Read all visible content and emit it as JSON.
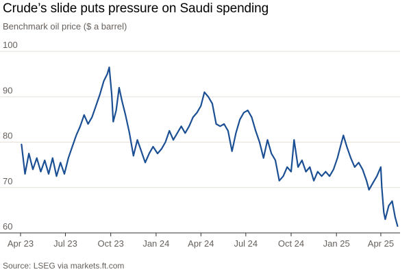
{
  "header": {
    "title": "Crude’s slide puts pressure on Saudi spending",
    "subtitle": "Benchmark oil price ($ a barrel)"
  },
  "footer": {
    "source": "Source: LSEG via markets.ft.com"
  },
  "colors": {
    "line": "#1b4f94",
    "grid": "#e6e0d8",
    "axis": "#33302e"
  },
  "chart_data": {
    "type": "line",
    "title": "Crude’s slide puts pressure on Saudi spending",
    "subtitle": "Benchmark oil price ($ a barrel)",
    "xlabel": "",
    "ylabel": "",
    "ylim": [
      60,
      100
    ],
    "xlim": [
      "2023-04-01",
      "2025-05-10"
    ],
    "yticks": [
      100,
      90,
      80,
      70,
      60
    ],
    "xticks": [
      {
        "date": "2023-04-01",
        "label": "Apr 23"
      },
      {
        "date": "2023-07-01",
        "label": "Jul 23"
      },
      {
        "date": "2023-10-01",
        "label": "Oct 23"
      },
      {
        "date": "2024-01-01",
        "label": "Jan 24"
      },
      {
        "date": "2024-04-01",
        "label": "Apr 24"
      },
      {
        "date": "2024-07-01",
        "label": "Jul 24"
      },
      {
        "date": "2024-10-01",
        "label": "Oct 24"
      },
      {
        "date": "2025-01-01",
        "label": "Jan 25"
      },
      {
        "date": "2025-04-01",
        "label": "Apr 25"
      }
    ],
    "grid": true,
    "series": [
      {
        "points": [
          [
            "2023-04-03",
            79.5
          ],
          [
            "2023-04-10",
            73.0
          ],
          [
            "2023-04-18",
            77.5
          ],
          [
            "2023-04-26",
            74.0
          ],
          [
            "2023-05-04",
            76.5
          ],
          [
            "2023-05-12",
            73.5
          ],
          [
            "2023-05-20",
            76.0
          ],
          [
            "2023-05-28",
            73.0
          ],
          [
            "2023-06-05",
            76.5
          ],
          [
            "2023-06-13",
            72.5
          ],
          [
            "2023-06-21",
            75.5
          ],
          [
            "2023-06-29",
            73.0
          ],
          [
            "2023-07-07",
            76.5
          ],
          [
            "2023-07-15",
            79.0
          ],
          [
            "2023-07-23",
            81.5
          ],
          [
            "2023-07-31",
            83.5
          ],
          [
            "2023-08-08",
            86.0
          ],
          [
            "2023-08-16",
            84.0
          ],
          [
            "2023-08-24",
            85.5
          ],
          [
            "2023-09-01",
            88.0
          ],
          [
            "2023-09-09",
            90.5
          ],
          [
            "2023-09-17",
            93.5
          ],
          [
            "2023-09-24",
            95.0
          ],
          [
            "2023-09-28",
            96.5
          ],
          [
            "2023-10-03",
            90.5
          ],
          [
            "2023-10-06",
            84.5
          ],
          [
            "2023-10-12",
            87.0
          ],
          [
            "2023-10-18",
            92.0
          ],
          [
            "2023-10-24",
            89.0
          ],
          [
            "2023-10-31",
            86.0
          ],
          [
            "2023-11-08",
            82.0
          ],
          [
            "2023-11-16",
            77.0
          ],
          [
            "2023-11-24",
            80.5
          ],
          [
            "2023-12-02",
            78.0
          ],
          [
            "2023-12-10",
            75.5
          ],
          [
            "2023-12-18",
            77.5
          ],
          [
            "2023-12-26",
            79.0
          ],
          [
            "2024-01-04",
            77.5
          ],
          [
            "2024-01-12",
            78.5
          ],
          [
            "2024-01-20",
            80.0
          ],
          [
            "2024-01-28",
            82.5
          ],
          [
            "2024-02-05",
            80.5
          ],
          [
            "2024-02-13",
            82.0
          ],
          [
            "2024-02-21",
            83.5
          ],
          [
            "2024-02-29",
            82.0
          ],
          [
            "2024-03-08",
            83.5
          ],
          [
            "2024-03-16",
            85.5
          ],
          [
            "2024-03-24",
            86.5
          ],
          [
            "2024-04-01",
            88.0
          ],
          [
            "2024-04-08",
            91.0
          ],
          [
            "2024-04-16",
            90.0
          ],
          [
            "2024-04-24",
            88.5
          ],
          [
            "2024-05-02",
            84.0
          ],
          [
            "2024-05-10",
            83.5
          ],
          [
            "2024-05-18",
            84.0
          ],
          [
            "2024-05-26",
            82.5
          ],
          [
            "2024-06-03",
            78.0
          ],
          [
            "2024-06-11",
            82.0
          ],
          [
            "2024-06-19",
            85.0
          ],
          [
            "2024-06-27",
            86.5
          ],
          [
            "2024-07-05",
            87.0
          ],
          [
            "2024-07-13",
            85.5
          ],
          [
            "2024-07-21",
            82.5
          ],
          [
            "2024-07-29",
            80.0
          ],
          [
            "2024-08-06",
            76.5
          ],
          [
            "2024-08-14",
            80.5
          ],
          [
            "2024-08-22",
            77.5
          ],
          [
            "2024-08-30",
            76.0
          ],
          [
            "2024-09-07",
            71.5
          ],
          [
            "2024-09-15",
            72.5
          ],
          [
            "2024-09-23",
            74.5
          ],
          [
            "2024-10-01",
            73.5
          ],
          [
            "2024-10-07",
            80.5
          ],
          [
            "2024-10-15",
            74.5
          ],
          [
            "2024-10-23",
            76.0
          ],
          [
            "2024-10-31",
            73.5
          ],
          [
            "2024-11-08",
            74.5
          ],
          [
            "2024-11-16",
            71.5
          ],
          [
            "2024-11-24",
            73.5
          ],
          [
            "2024-12-02",
            72.5
          ],
          [
            "2024-12-10",
            73.5
          ],
          [
            "2024-12-18",
            72.5
          ],
          [
            "2024-12-26",
            74.0
          ],
          [
            "2025-01-03",
            76.5
          ],
          [
            "2025-01-09",
            79.0
          ],
          [
            "2025-01-15",
            81.5
          ],
          [
            "2025-01-22",
            79.0
          ],
          [
            "2025-01-30",
            76.5
          ],
          [
            "2025-02-07",
            74.5
          ],
          [
            "2025-02-15",
            75.5
          ],
          [
            "2025-02-23",
            74.0
          ],
          [
            "2025-03-03",
            71.5
          ],
          [
            "2025-03-08",
            69.5
          ],
          [
            "2025-03-16",
            71.0
          ],
          [
            "2025-03-24",
            72.5
          ],
          [
            "2025-04-01",
            74.5
          ],
          [
            "2025-04-03",
            70.0
          ],
          [
            "2025-04-07",
            64.5
          ],
          [
            "2025-04-10",
            63.0
          ],
          [
            "2025-04-17",
            66.0
          ],
          [
            "2025-04-24",
            67.0
          ],
          [
            "2025-04-30",
            63.5
          ],
          [
            "2025-05-05",
            61.5
          ]
        ]
      }
    ]
  }
}
